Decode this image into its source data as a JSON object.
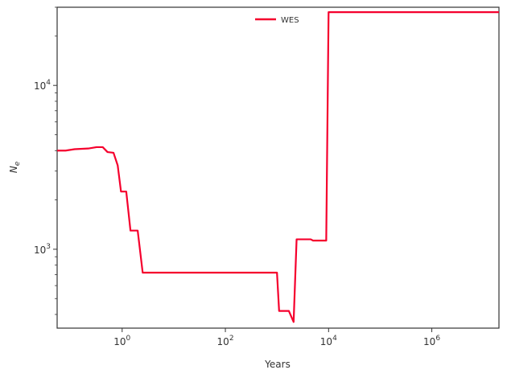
{
  "chart_data": {
    "type": "line",
    "title": "",
    "xlabel": "Years",
    "ylabel": "N",
    "ylabel_subscript": "e",
    "xscale": "log",
    "yscale": "log",
    "xlim": [
      0.055,
      20000000
    ],
    "ylim": [
      330,
      30000
    ],
    "grid": false,
    "legend": "top-center",
    "x_ticks": [
      {
        "value": 1,
        "base": "10",
        "exp": "0"
      },
      {
        "value": 100,
        "base": "10",
        "exp": "2"
      },
      {
        "value": 10000,
        "base": "10",
        "exp": "4"
      },
      {
        "value": 1000000,
        "base": "10",
        "exp": "6"
      }
    ],
    "y_ticks": [
      {
        "value": 1000,
        "base": "10",
        "exp": "3"
      },
      {
        "value": 10000,
        "base": "10",
        "exp": "4"
      }
    ],
    "series": [
      {
        "name": "WES",
        "color": "#f5002d",
        "x": [
          0.055,
          0.08,
          0.12,
          0.22,
          0.32,
          0.42,
          0.52,
          0.68,
          0.82,
          0.95,
          1.2,
          1.45,
          2.0,
          2.5,
          1000,
          1100,
          1300,
          1700,
          2100,
          2400,
          3300,
          4500,
          5000,
          9000,
          10000,
          11000,
          20000000
        ],
        "y": [
          4000,
          4000,
          4080,
          4120,
          4200,
          4200,
          3920,
          3880,
          3250,
          2250,
          2250,
          1300,
          1300,
          720,
          720,
          420,
          420,
          420,
          360,
          1150,
          1150,
          1150,
          1130,
          1130,
          28000,
          28000,
          28000
        ]
      }
    ]
  }
}
